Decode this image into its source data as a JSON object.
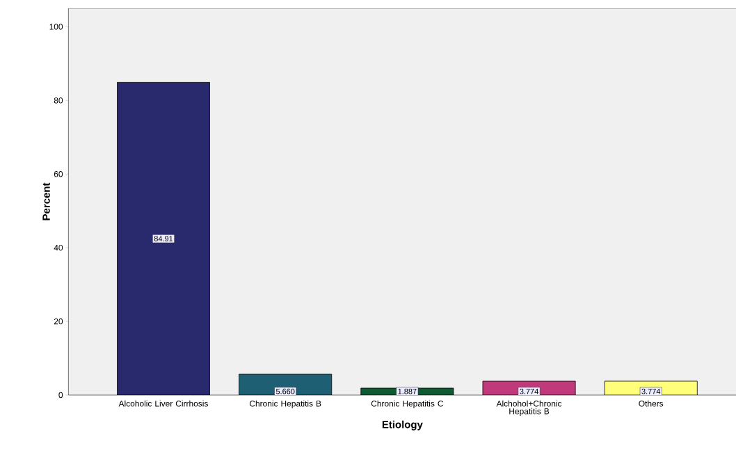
{
  "chart_data": {
    "type": "bar",
    "xlabel": "Etiology",
    "ylabel": "Percent",
    "categories": [
      "Alcoholic Liver Cirrhosis",
      "Chronic Hepatitis B",
      "Chronic Hepatitis C",
      "Alchohol+Chronic Hepatitis B",
      "Others"
    ],
    "values": [
      84.91,
      5.66,
      1.887,
      3.774,
      3.774
    ],
    "value_labels": [
      "84.91",
      "5.660",
      "1.887",
      "3.774",
      "3.774"
    ],
    "colors": [
      "#29296e",
      "#1f5f73",
      "#0f5a32",
      "#c0397a",
      "#ffff7a"
    ],
    "ylim": [
      0,
      105
    ],
    "yticks": [
      0,
      20,
      40,
      60,
      80,
      100
    ],
    "grid": false
  }
}
